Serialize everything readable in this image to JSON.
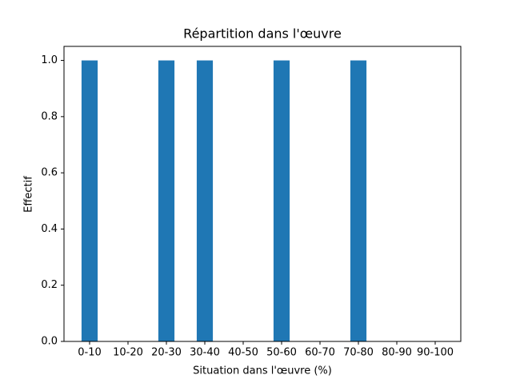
{
  "chart_data": {
    "type": "bar",
    "title": "Répartition dans l'œuvre",
    "xlabel": "Situation dans l'œuvre (%)",
    "ylabel": "Effectif",
    "categories": [
      "0-10",
      "10-20",
      "20-30",
      "30-40",
      "40-50",
      "50-60",
      "60-70",
      "70-80",
      "80-90",
      "90-100"
    ],
    "values": [
      1,
      0,
      1,
      1,
      0,
      1,
      0,
      1,
      0,
      0
    ],
    "color": "#1f77b4",
    "ylim": [
      0,
      1.05
    ],
    "yticks": [
      {
        "value": 0,
        "label": "0.0"
      },
      {
        "value": 0.2,
        "label": "0.2"
      },
      {
        "value": 0.4,
        "label": "0.4"
      },
      {
        "value": 0.6,
        "label": "0.6"
      },
      {
        "value": 0.8,
        "label": "0.8"
      },
      {
        "value": 1,
        "label": "1.0"
      }
    ],
    "grid": false
  }
}
